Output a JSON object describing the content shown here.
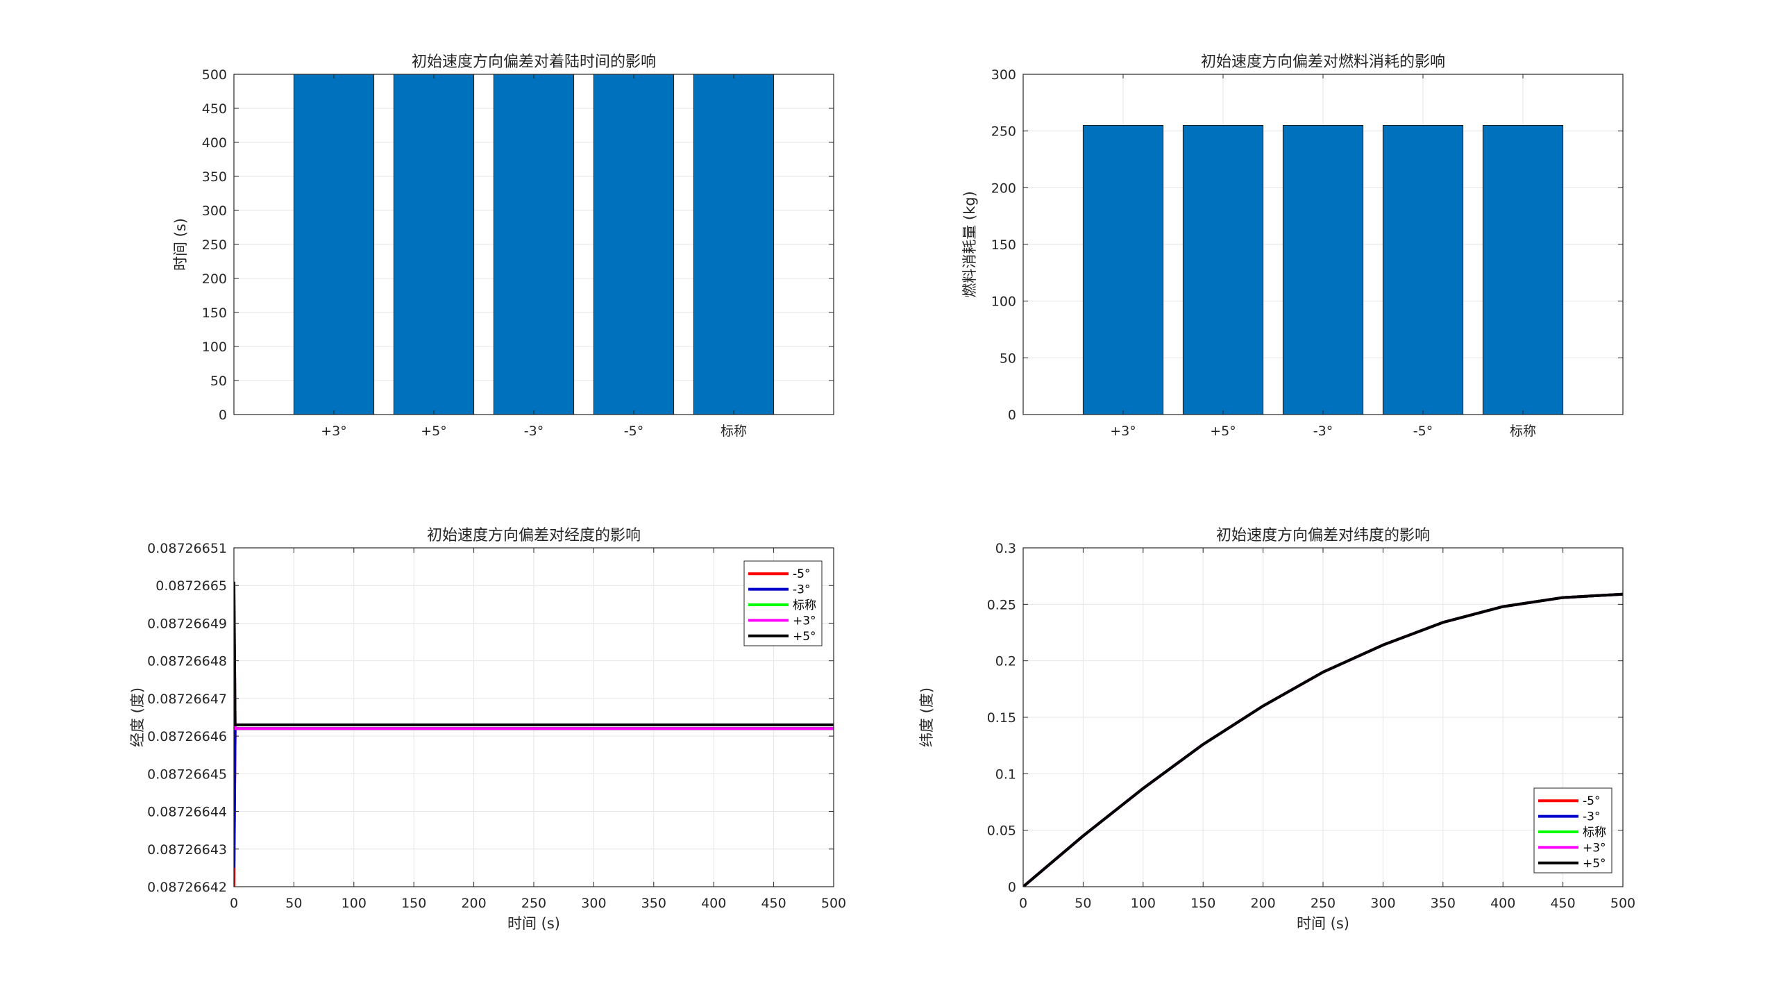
{
  "colors": {
    "bar_fill": "#0072BD",
    "grid": "#e6e6e6",
    "axis": "#262626"
  },
  "chart_data": [
    {
      "type": "bar",
      "title": "初始速度方向偏差对着陆时间的影响",
      "xlabel": "",
      "ylabel": "时间 (s)",
      "categories": [
        "+3°",
        "+5°",
        "-3°",
        "-5°",
        "标称"
      ],
      "values": [
        500,
        500,
        500,
        500,
        500
      ],
      "ylim": [
        0,
        500
      ],
      "yticks": [
        0,
        50,
        100,
        150,
        200,
        250,
        300,
        350,
        400,
        450,
        500
      ],
      "ytick_labels": [
        "0",
        "50",
        "100",
        "150",
        "200",
        "250",
        "300",
        "350",
        "400",
        "450",
        "500"
      ],
      "grid": true
    },
    {
      "type": "bar",
      "title": "初始速度方向偏差对燃料消耗的影响",
      "xlabel": "",
      "ylabel": "燃料消耗量 (kg)",
      "categories": [
        "+3°",
        "+5°",
        "-3°",
        "-5°",
        "标称"
      ],
      "values": [
        255,
        255,
        255,
        255,
        255
      ],
      "ylim": [
        0,
        300
      ],
      "yticks": [
        0,
        50,
        100,
        150,
        200,
        250,
        300
      ],
      "ytick_labels": [
        "0",
        "50",
        "100",
        "150",
        "200",
        "250",
        "300"
      ],
      "grid": true
    },
    {
      "type": "line",
      "title": "初始速度方向偏差对经度的影响",
      "xlabel": "时间 (s)",
      "ylabel": "经度 (度)",
      "xlim": [
        0,
        500
      ],
      "ylim": [
        0.08726642,
        0.08726651
      ],
      "xticks": [
        0,
        50,
        100,
        150,
        200,
        250,
        300,
        350,
        400,
        450,
        500
      ],
      "xtick_labels": [
        "0",
        "50",
        "100",
        "150",
        "200",
        "250",
        "300",
        "350",
        "400",
        "450",
        "500"
      ],
      "yticks": [
        0.08726642,
        0.08726643,
        0.08726644,
        0.08726645,
        0.08726646,
        0.08726647,
        0.08726648,
        0.08726649,
        0.0872665,
        0.08726651
      ],
      "ytick_labels": [
        "0.08726642",
        "0.08726643",
        "0.08726644",
        "0.08726645",
        "0.08726646",
        "0.08726647",
        "0.08726648",
        "0.08726649",
        "0.0872665",
        "0.08726651"
      ],
      "legend_position": "top-right",
      "grid": true,
      "series": [
        {
          "name": "-5°",
          "color": "#FF0000",
          "x": [
            0,
            1,
            500
          ],
          "y": [
            0.08726642,
            0.087266462,
            0.087266462
          ]
        },
        {
          "name": "-3°",
          "color": "#0000CC",
          "x": [
            0,
            1,
            500
          ],
          "y": [
            0.087266425,
            0.087266462,
            0.087266462
          ]
        },
        {
          "name": "标称",
          "color": "#00FF00",
          "x": [
            0,
            500
          ],
          "y": [
            0.087266462,
            0.087266462
          ]
        },
        {
          "name": "+3°",
          "color": "#FF00FF",
          "x": [
            0,
            1,
            500
          ],
          "y": [
            0.0872664985,
            0.087266462,
            0.087266462
          ]
        },
        {
          "name": "+5°",
          "color": "#000000",
          "x": [
            0,
            1,
            500
          ],
          "y": [
            0.087266501,
            0.087266463,
            0.087266463
          ]
        }
      ]
    },
    {
      "type": "line",
      "title": "初始速度方向偏差对纬度的影响",
      "xlabel": "时间 (s)",
      "ylabel": "纬度 (度)",
      "xlim": [
        0,
        500
      ],
      "ylim": [
        0,
        0.3
      ],
      "xticks": [
        0,
        50,
        100,
        150,
        200,
        250,
        300,
        350,
        400,
        450,
        500
      ],
      "xtick_labels": [
        "0",
        "50",
        "100",
        "150",
        "200",
        "250",
        "300",
        "350",
        "400",
        "450",
        "500"
      ],
      "yticks": [
        0,
        0.05,
        0.1,
        0.15,
        0.2,
        0.25,
        0.3
      ],
      "ytick_labels": [
        "0",
        "0.05",
        "0.1",
        "0.15",
        "0.2",
        "0.25",
        "0.3"
      ],
      "legend_position": "bottom-right",
      "grid": true,
      "series": [
        {
          "name": "-5°",
          "color": "#FF0000",
          "x": [
            0,
            50,
            100,
            150,
            200,
            250,
            300,
            350,
            400,
            450,
            500
          ],
          "y": [
            0,
            0.045,
            0.087,
            0.126,
            0.16,
            0.19,
            0.214,
            0.234,
            0.248,
            0.256,
            0.259
          ]
        },
        {
          "name": "-3°",
          "color": "#0000CC",
          "x": [
            0,
            50,
            100,
            150,
            200,
            250,
            300,
            350,
            400,
            450,
            500
          ],
          "y": [
            0,
            0.045,
            0.087,
            0.126,
            0.16,
            0.19,
            0.214,
            0.234,
            0.248,
            0.256,
            0.259
          ]
        },
        {
          "name": "标称",
          "color": "#00FF00",
          "x": [
            0,
            50,
            100,
            150,
            200,
            250,
            300,
            350,
            400,
            450,
            500
          ],
          "y": [
            0,
            0.045,
            0.087,
            0.126,
            0.16,
            0.19,
            0.214,
            0.234,
            0.248,
            0.256,
            0.259
          ]
        },
        {
          "name": "+3°",
          "color": "#FF00FF",
          "x": [
            0,
            50,
            100,
            150,
            200,
            250,
            300,
            350,
            400,
            450,
            500
          ],
          "y": [
            0,
            0.045,
            0.087,
            0.126,
            0.16,
            0.19,
            0.214,
            0.234,
            0.248,
            0.256,
            0.259
          ]
        },
        {
          "name": "+5°",
          "color": "#000000",
          "x": [
            0,
            50,
            100,
            150,
            200,
            250,
            300,
            350,
            400,
            450,
            500
          ],
          "y": [
            0,
            0.045,
            0.087,
            0.126,
            0.16,
            0.19,
            0.214,
            0.234,
            0.248,
            0.256,
            0.259
          ]
        }
      ]
    }
  ]
}
